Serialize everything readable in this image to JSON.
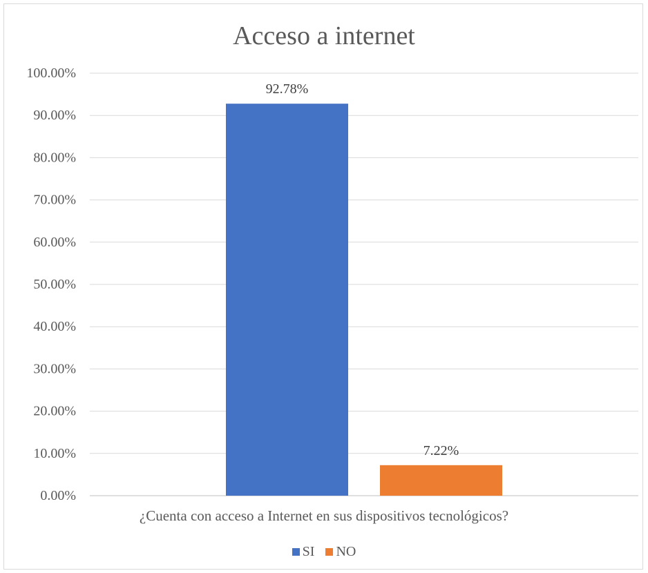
{
  "chart_data": {
    "type": "bar",
    "title": "Acceso a internet",
    "categories": [
      "¿Cuenta con acceso a Internet en sus dispositivos tecnológicos?"
    ],
    "series": [
      {
        "name": "SI",
        "values": [
          92.78
        ],
        "label": "92.78%",
        "color": "#4472c4"
      },
      {
        "name": "NO",
        "values": [
          7.22
        ],
        "label": "7.22%",
        "color": "#ed7d31"
      }
    ],
    "ylim": [
      0,
      100
    ],
    "y_ticks": [
      "0.00%",
      "10.00%",
      "20.00%",
      "30.00%",
      "40.00%",
      "50.00%",
      "60.00%",
      "70.00%",
      "80.00%",
      "90.00%",
      "100.00%"
    ],
    "grid": true,
    "legend": "bottom"
  }
}
